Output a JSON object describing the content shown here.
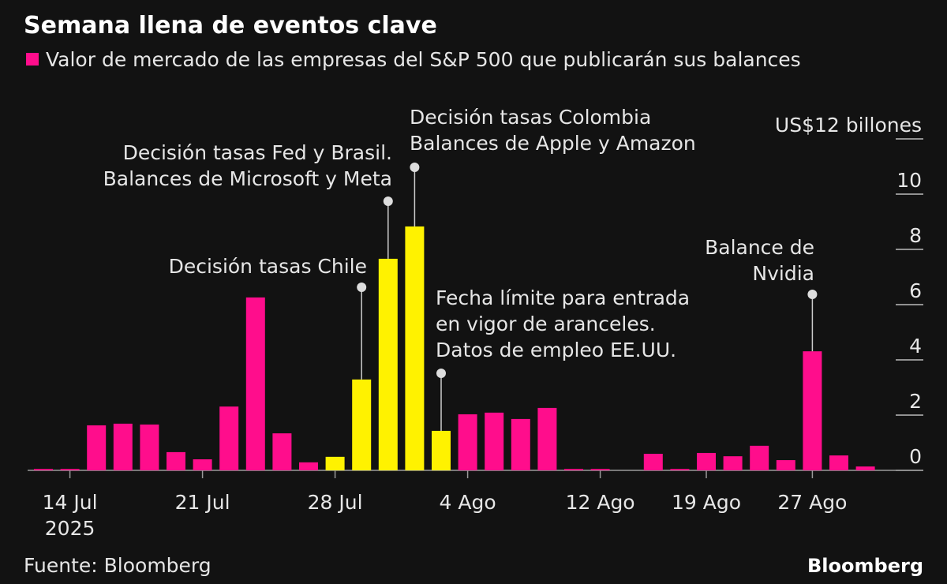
{
  "chart_data": {
    "type": "bar",
    "title": "Semana llena de eventos clave",
    "legend": "Valor de mercado de las empresas del S&P 500 que publicarán sus balances",
    "source": "Fuente: Bloomberg",
    "brand": "Bloomberg",
    "x_year": "2025",
    "categories": [
      null,
      "14 Jul",
      null,
      null,
      null,
      null,
      "21 Jul",
      null,
      null,
      null,
      null,
      "28 Jul",
      null,
      null,
      null,
      null,
      "4 Ago",
      null,
      null,
      null,
      null,
      "12 Ago",
      null,
      null,
      null,
      "19 Ago",
      null,
      null,
      null,
      "27 Ago",
      null,
      null
    ],
    "values": [
      0.05,
      0.05,
      1.63,
      1.69,
      1.66,
      0.66,
      0.4,
      2.31,
      6.26,
      1.34,
      0.29,
      0.49,
      3.29,
      7.66,
      8.83,
      1.43,
      2.03,
      2.09,
      1.86,
      2.26,
      0.05,
      0.05,
      0,
      0.6,
      0.05,
      0.63,
      0.51,
      0.89,
      0.37,
      4.31,
      0.54,
      0.14
    ],
    "bar_colors": [
      "#ff0d8c",
      "#ff0d8c",
      "#ff0d8c",
      "#ff0d8c",
      "#ff0d8c",
      "#ff0d8c",
      "#ff0d8c",
      "#ff0d8c",
      "#ff0d8c",
      "#ff0d8c",
      "#ff0d8c",
      "#fff200",
      "#fff200",
      "#fff200",
      "#fff200",
      "#fff200",
      "#ff0d8c",
      "#ff0d8c",
      "#ff0d8c",
      "#ff0d8c",
      "#ff0d8c",
      "#ff0d8c",
      "#ff0d8c",
      "#ff0d8c",
      "#ff0d8c",
      "#ff0d8c",
      "#ff0d8c",
      "#ff0d8c",
      "#ff0d8c",
      "#ff0d8c",
      "#ff0d8c",
      "#ff0d8c"
    ],
    "color": "#ff0d8c",
    "ylim": [
      0,
      12
    ],
    "yticks": [
      0,
      2,
      4,
      6,
      8,
      10,
      {
        "value": 12,
        "label": "US$12 billones"
      }
    ],
    "annotations": [
      {
        "lines": [
          "Decisión tasas Chile"
        ]
      },
      {
        "lines": [
          "Decisión tasas Fed y Brasil.",
          "Balances de Microsoft y Meta"
        ]
      },
      {
        "lines": [
          "Decisión tasas Colombia",
          "Balances de Apple y Amazon"
        ]
      },
      {
        "lines": [
          "Fecha límite para entrada",
          "en vigor de aranceles.",
          "Datos de empleo EE.UU."
        ]
      },
      {
        "lines": [
          "Balance de",
          "Nvidia"
        ]
      }
    ]
  }
}
